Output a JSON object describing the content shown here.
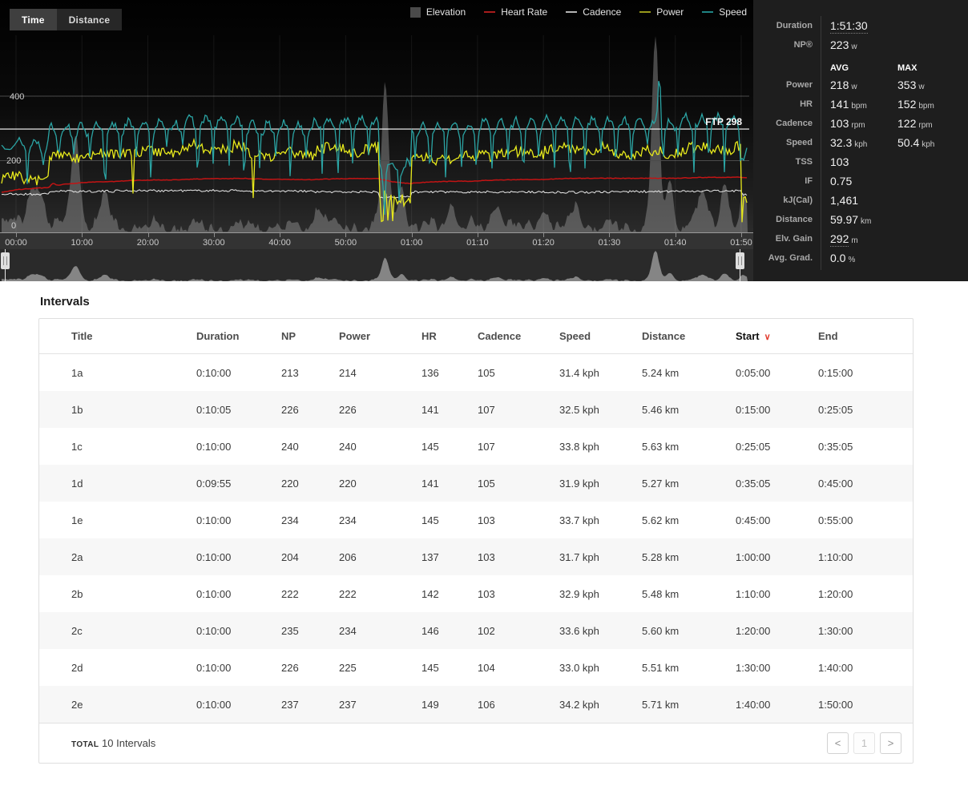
{
  "toolbar": {
    "time_label": "Time",
    "distance_label": "Distance"
  },
  "legend": [
    {
      "label": "Elevation",
      "color": "#4a4a4a",
      "swatch": "square"
    },
    {
      "label": "Heart Rate",
      "color": "#a81c1c",
      "swatch": "line"
    },
    {
      "label": "Cadence",
      "color": "#b5b5b5",
      "swatch": "line"
    },
    {
      "label": "Power",
      "color": "#97991c",
      "swatch": "line"
    },
    {
      "label": "Speed",
      "color": "#1f8484",
      "swatch": "line"
    }
  ],
  "chart_data": {
    "type": "line",
    "x_ticks": [
      "00:00",
      "10:00",
      "20:00",
      "30:00",
      "40:00",
      "50:00",
      "01:00",
      "01:10",
      "01:20",
      "01:30",
      "01:40",
      "01:50"
    ],
    "y_ticks": [
      "400",
      "200",
      "0"
    ],
    "y_axis_range": [
      0,
      400
    ],
    "ftp_label": "FTP 298",
    "ftp_value": 298,
    "duration_min": 111.5,
    "series_colors": {
      "power": "#e7e91c",
      "hr": "#c21414",
      "cadence": "#e8e8e8",
      "speed": "#2ba4a4",
      "elevation": "#8c8c8c"
    },
    "segments": [
      {
        "id": "warmup",
        "t": [
          0,
          5
        ],
        "power": 145,
        "hr": 118,
        "cadence": 96,
        "speed": 26.5
      },
      {
        "id": "1a",
        "t": [
          5,
          15
        ],
        "power": 214,
        "hr": 136,
        "cadence": 105,
        "speed": 31.4
      },
      {
        "id": "1b",
        "t": [
          15,
          25
        ],
        "power": 226,
        "hr": 141,
        "cadence": 107,
        "speed": 32.5
      },
      {
        "id": "1c",
        "t": [
          25,
          35
        ],
        "power": 240,
        "hr": 145,
        "cadence": 107,
        "speed": 33.8
      },
      {
        "id": "1d",
        "t": [
          35,
          45
        ],
        "power": 220,
        "hr": 141,
        "cadence": 105,
        "speed": 31.9
      },
      {
        "id": "1e",
        "t": [
          45,
          55
        ],
        "power": 234,
        "hr": 145,
        "cadence": 103,
        "speed": 33.7
      },
      {
        "id": "recovery",
        "t": [
          55,
          60
        ],
        "power": 85,
        "hr": 124,
        "cadence": 88,
        "speed": 19
      },
      {
        "id": "2a",
        "t": [
          60,
          70
        ],
        "power": 206,
        "hr": 137,
        "cadence": 103,
        "speed": 31.7
      },
      {
        "id": "2b",
        "t": [
          70,
          80
        ],
        "power": 222,
        "hr": 142,
        "cadence": 103,
        "speed": 32.9
      },
      {
        "id": "2c",
        "t": [
          80,
          90
        ],
        "power": 234,
        "hr": 146,
        "cadence": 102,
        "speed": 33.6
      },
      {
        "id": "2d",
        "t": [
          90,
          100
        ],
        "power": 225,
        "hr": 145,
        "cadence": 104,
        "speed": 33.0
      },
      {
        "id": "2e",
        "t": [
          100,
          110
        ],
        "power": 237,
        "hr": 149,
        "cadence": 106,
        "speed": 34.2
      },
      {
        "id": "cooldown",
        "t": [
          110,
          111.5
        ],
        "power": 70,
        "hr": 140,
        "cadence": 95,
        "speed": 23
      }
    ],
    "speed_max_spike": {
      "t": 97.6,
      "kph": 50.4
    },
    "elevation_peaks": [
      [
        2.5,
        40,
        0.8
      ],
      [
        4,
        25,
        0.5
      ],
      [
        9,
        82,
        0.7
      ],
      [
        13.5,
        32,
        0.6
      ],
      [
        46,
        18,
        0.8
      ],
      [
        56,
        128,
        0.55
      ],
      [
        58.5,
        42,
        0.5
      ],
      [
        66,
        20,
        0.7
      ],
      [
        73,
        22,
        0.7
      ],
      [
        80,
        18,
        0.6
      ],
      [
        85,
        20,
        0.6
      ],
      [
        97,
        172,
        0.55
      ],
      [
        99.2,
        45,
        0.5
      ],
      [
        104,
        30,
        0.8
      ],
      [
        107.5,
        42,
        0.6
      ],
      [
        110.3,
        28,
        0.5
      ]
    ]
  },
  "stats": {
    "top_rows": [
      {
        "label": "Duration",
        "value": "1:51:30",
        "unit": "",
        "underline": true
      },
      {
        "label": "NP®",
        "value": "223",
        "unit": "w",
        "underline": false
      }
    ],
    "avg_header": "AVG",
    "max_header": "MAX",
    "rows": [
      {
        "label": "Power",
        "avg": "218",
        "avg_unit": "w",
        "max": "353",
        "max_unit": "w"
      },
      {
        "label": "HR",
        "avg": "141",
        "avg_unit": "bpm",
        "max": "152",
        "max_unit": "bpm"
      },
      {
        "label": "Cadence",
        "avg": "103",
        "avg_unit": "rpm",
        "max": "122",
        "max_unit": "rpm"
      },
      {
        "label": "Speed",
        "avg": "32.3",
        "avg_unit": "kph",
        "max": "50.4",
        "max_unit": "kph"
      },
      {
        "label": "TSS",
        "avg": "103",
        "avg_unit": "",
        "max": "",
        "max_unit": ""
      },
      {
        "label": "IF",
        "avg": "0.75",
        "avg_unit": "",
        "max": "",
        "max_unit": ""
      },
      {
        "label": "kJ(Cal)",
        "avg": "1,461",
        "avg_unit": "",
        "max": "",
        "max_unit": ""
      },
      {
        "label": "Distance",
        "avg": "59.97",
        "avg_unit": "km",
        "max": "",
        "max_unit": ""
      },
      {
        "label": "Elv. Gain",
        "avg": "292",
        "avg_unit": "m",
        "max": "",
        "max_unit": "",
        "underline": true
      },
      {
        "label": "Avg. Grad.",
        "avg": "0.0",
        "avg_unit": "%",
        "max": "",
        "max_unit": ""
      }
    ]
  },
  "intervals": {
    "heading": "Intervals",
    "columns": [
      "Title",
      "Duration",
      "NP",
      "Power",
      "HR",
      "Cadence",
      "Speed",
      "Distance",
      "Start",
      "End"
    ],
    "sort_column": "Start",
    "rows": [
      {
        "title": "1a",
        "duration": "0:10:00",
        "np": "213",
        "power": "214",
        "hr": "136",
        "cadence": "105",
        "speed": "31.4 kph",
        "distance": "5.24 km",
        "start": "0:05:00",
        "end": "0:15:00"
      },
      {
        "title": "1b",
        "duration": "0:10:05",
        "np": "226",
        "power": "226",
        "hr": "141",
        "cadence": "107",
        "speed": "32.5 kph",
        "distance": "5.46 km",
        "start": "0:15:00",
        "end": "0:25:05"
      },
      {
        "title": "1c",
        "duration": "0:10:00",
        "np": "240",
        "power": "240",
        "hr": "145",
        "cadence": "107",
        "speed": "33.8 kph",
        "distance": "5.63 km",
        "start": "0:25:05",
        "end": "0:35:05"
      },
      {
        "title": "1d",
        "duration": "0:09:55",
        "np": "220",
        "power": "220",
        "hr": "141",
        "cadence": "105",
        "speed": "31.9 kph",
        "distance": "5.27 km",
        "start": "0:35:05",
        "end": "0:45:00"
      },
      {
        "title": "1e",
        "duration": "0:10:00",
        "np": "234",
        "power": "234",
        "hr": "145",
        "cadence": "103",
        "speed": "33.7 kph",
        "distance": "5.62 km",
        "start": "0:45:00",
        "end": "0:55:00"
      },
      {
        "title": "2a",
        "duration": "0:10:00",
        "np": "204",
        "power": "206",
        "hr": "137",
        "cadence": "103",
        "speed": "31.7 kph",
        "distance": "5.28 km",
        "start": "1:00:00",
        "end": "1:10:00"
      },
      {
        "title": "2b",
        "duration": "0:10:00",
        "np": "222",
        "power": "222",
        "hr": "142",
        "cadence": "103",
        "speed": "32.9 kph",
        "distance": "5.48 km",
        "start": "1:10:00",
        "end": "1:20:00"
      },
      {
        "title": "2c",
        "duration": "0:10:00",
        "np": "235",
        "power": "234",
        "hr": "146",
        "cadence": "102",
        "speed": "33.6 kph",
        "distance": "5.60 km",
        "start": "1:20:00",
        "end": "1:30:00"
      },
      {
        "title": "2d",
        "duration": "0:10:00",
        "np": "226",
        "power": "225",
        "hr": "145",
        "cadence": "104",
        "speed": "33.0 kph",
        "distance": "5.51 km",
        "start": "1:30:00",
        "end": "1:40:00"
      },
      {
        "title": "2e",
        "duration": "0:10:00",
        "np": "237",
        "power": "237",
        "hr": "149",
        "cadence": "106",
        "speed": "34.2 kph",
        "distance": "5.71 km",
        "start": "1:40:00",
        "end": "1:50:00"
      }
    ],
    "footer": {
      "total_label": "TOTAL",
      "total_text": "10 Intervals",
      "page": "1",
      "prev": "<",
      "next": ">"
    }
  }
}
